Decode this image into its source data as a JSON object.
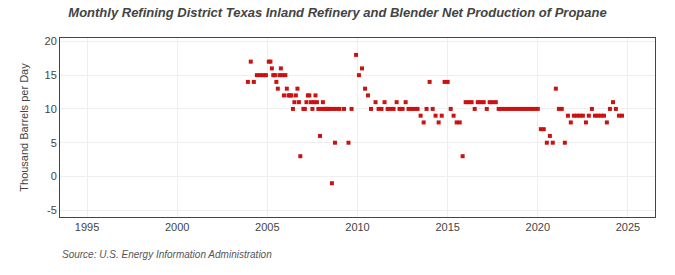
{
  "chart_data": {
    "type": "scatter",
    "title": "Monthly Refining District Texas Inland Refinery and Blender Net Production of Propane",
    "y_label": "Thousand Barrels per Day",
    "source": "Source: U.S. Energy Information Administration",
    "xlim": [
      1993.5,
      2026.5
    ],
    "ylim": [
      -6,
      20.5
    ],
    "xticks": [
      1995,
      2000,
      2005,
      2010,
      2015,
      2020,
      2025
    ],
    "yticks": [
      -5,
      0,
      5,
      10,
      15,
      20
    ],
    "grid": true,
    "color": "#cc1111",
    "marker": "square",
    "x": [
      2003.92,
      2004.08,
      2004.25,
      2004.42,
      2004.58,
      2004.75,
      2004.92,
      2005.08,
      2005.17,
      2005.25,
      2005.33,
      2005.42,
      2005.5,
      2005.58,
      2005.67,
      2005.75,
      2005.83,
      2005.92,
      2006.0,
      2006.08,
      2006.17,
      2006.25,
      2006.33,
      2006.42,
      2006.5,
      2006.58,
      2006.67,
      2006.75,
      2006.83,
      2007.0,
      2007.08,
      2007.17,
      2007.25,
      2007.33,
      2007.42,
      2007.5,
      2007.58,
      2007.67,
      2007.75,
      2007.83,
      2007.92,
      2008.0,
      2008.08,
      2008.17,
      2008.25,
      2008.33,
      2008.42,
      2008.5,
      2008.58,
      2008.67,
      2008.75,
      2008.83,
      2009.0,
      2009.25,
      2009.5,
      2009.67,
      2009.92,
      2010.08,
      2010.25,
      2010.42,
      2010.58,
      2010.75,
      2011.0,
      2011.17,
      2011.33,
      2011.5,
      2011.67,
      2011.83,
      2012.0,
      2012.17,
      2012.33,
      2012.5,
      2012.67,
      2012.83,
      2013.0,
      2013.17,
      2013.33,
      2013.5,
      2013.67,
      2013.83,
      2014.0,
      2014.17,
      2014.33,
      2014.5,
      2014.67,
      2014.83,
      2015.0,
      2015.17,
      2015.33,
      2015.5,
      2015.67,
      2015.83,
      2016.0,
      2016.17,
      2016.33,
      2016.5,
      2016.67,
      2016.83,
      2017.0,
      2017.17,
      2017.33,
      2017.5,
      2017.67,
      2017.83,
      2018.0,
      2018.17,
      2018.33,
      2018.5,
      2018.67,
      2018.83,
      2019.0,
      2019.17,
      2019.33,
      2019.5,
      2019.67,
      2019.83,
      2020.0,
      2020.17,
      2020.33,
      2020.5,
      2020.67,
      2020.83,
      2021.0,
      2021.17,
      2021.33,
      2021.5,
      2021.67,
      2021.83,
      2022.0,
      2022.17,
      2022.33,
      2022.5,
      2022.67,
      2022.83,
      2023.0,
      2023.17,
      2023.33,
      2023.5,
      2023.67,
      2023.83,
      2024.0,
      2024.17,
      2024.33,
      2024.5,
      2024.67
    ],
    "values": [
      14,
      17,
      14,
      15,
      15,
      15,
      15,
      17,
      17,
      16,
      15,
      15,
      14,
      13,
      15,
      16,
      15,
      12,
      15,
      13,
      12,
      12,
      12,
      10,
      11,
      12,
      13,
      11,
      3,
      10,
      10,
      11,
      12,
      12,
      11,
      10,
      11,
      12,
      11,
      10,
      6,
      10,
      11,
      10,
      10,
      10,
      10,
      10,
      -1,
      10,
      5,
      10,
      10,
      10,
      5,
      10,
      18,
      15,
      16,
      13,
      12,
      10,
      11,
      10,
      10,
      11,
      10,
      10,
      10,
      11,
      10,
      10,
      11,
      10,
      10,
      10,
      10,
      9,
      8,
      10,
      14,
      10,
      9,
      8,
      9,
      14,
      14,
      10,
      9,
      8,
      8,
      3,
      11,
      11,
      11,
      10,
      11,
      11,
      11,
      10,
      11,
      11,
      11,
      10,
      10,
      10,
      10,
      10,
      10,
      10,
      10,
      10,
      10,
      10,
      10,
      10,
      10,
      7,
      7,
      5,
      6,
      5,
      13,
      10,
      10,
      5,
      9,
      8,
      9,
      9,
      9,
      9,
      8,
      9,
      10,
      9,
      9,
      9,
      9,
      8,
      10,
      11,
      10,
      9,
      9
    ]
  }
}
